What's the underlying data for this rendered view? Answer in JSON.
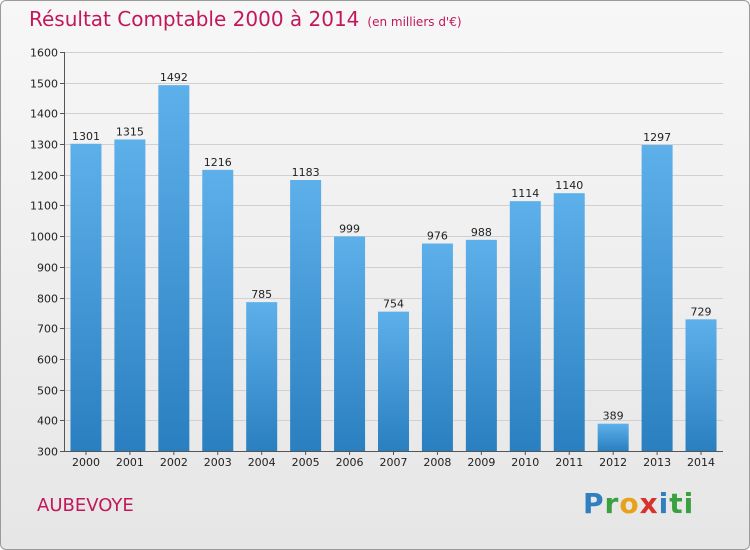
{
  "chart_data": {
    "type": "bar",
    "title": "Résultat Comptable 2000 à 2014",
    "subtitle": "(en milliers d'€)",
    "categories": [
      "2000",
      "2001",
      "2002",
      "2003",
      "2004",
      "2005",
      "2006",
      "2007",
      "2008",
      "2009",
      "2010",
      "2011",
      "2012",
      "2013",
      "2014"
    ],
    "values": [
      1301,
      1315,
      1492,
      1216,
      785,
      1183,
      999,
      754,
      976,
      988,
      1114,
      1140,
      389,
      1297,
      729
    ],
    "ylim": [
      300,
      1600
    ],
    "yticks": [
      300,
      400,
      500,
      600,
      700,
      800,
      900,
      1000,
      1100,
      1200,
      1300,
      1400,
      1500,
      1600
    ],
    "xlabel": "",
    "ylabel": "",
    "grid": true,
    "bar_color": "#3d9ad8"
  },
  "place": "AUBEVOYE",
  "logo": {
    "text": "Proxiti",
    "letters": [
      "P",
      "r",
      "o",
      "x",
      "i",
      "ti"
    ]
  }
}
